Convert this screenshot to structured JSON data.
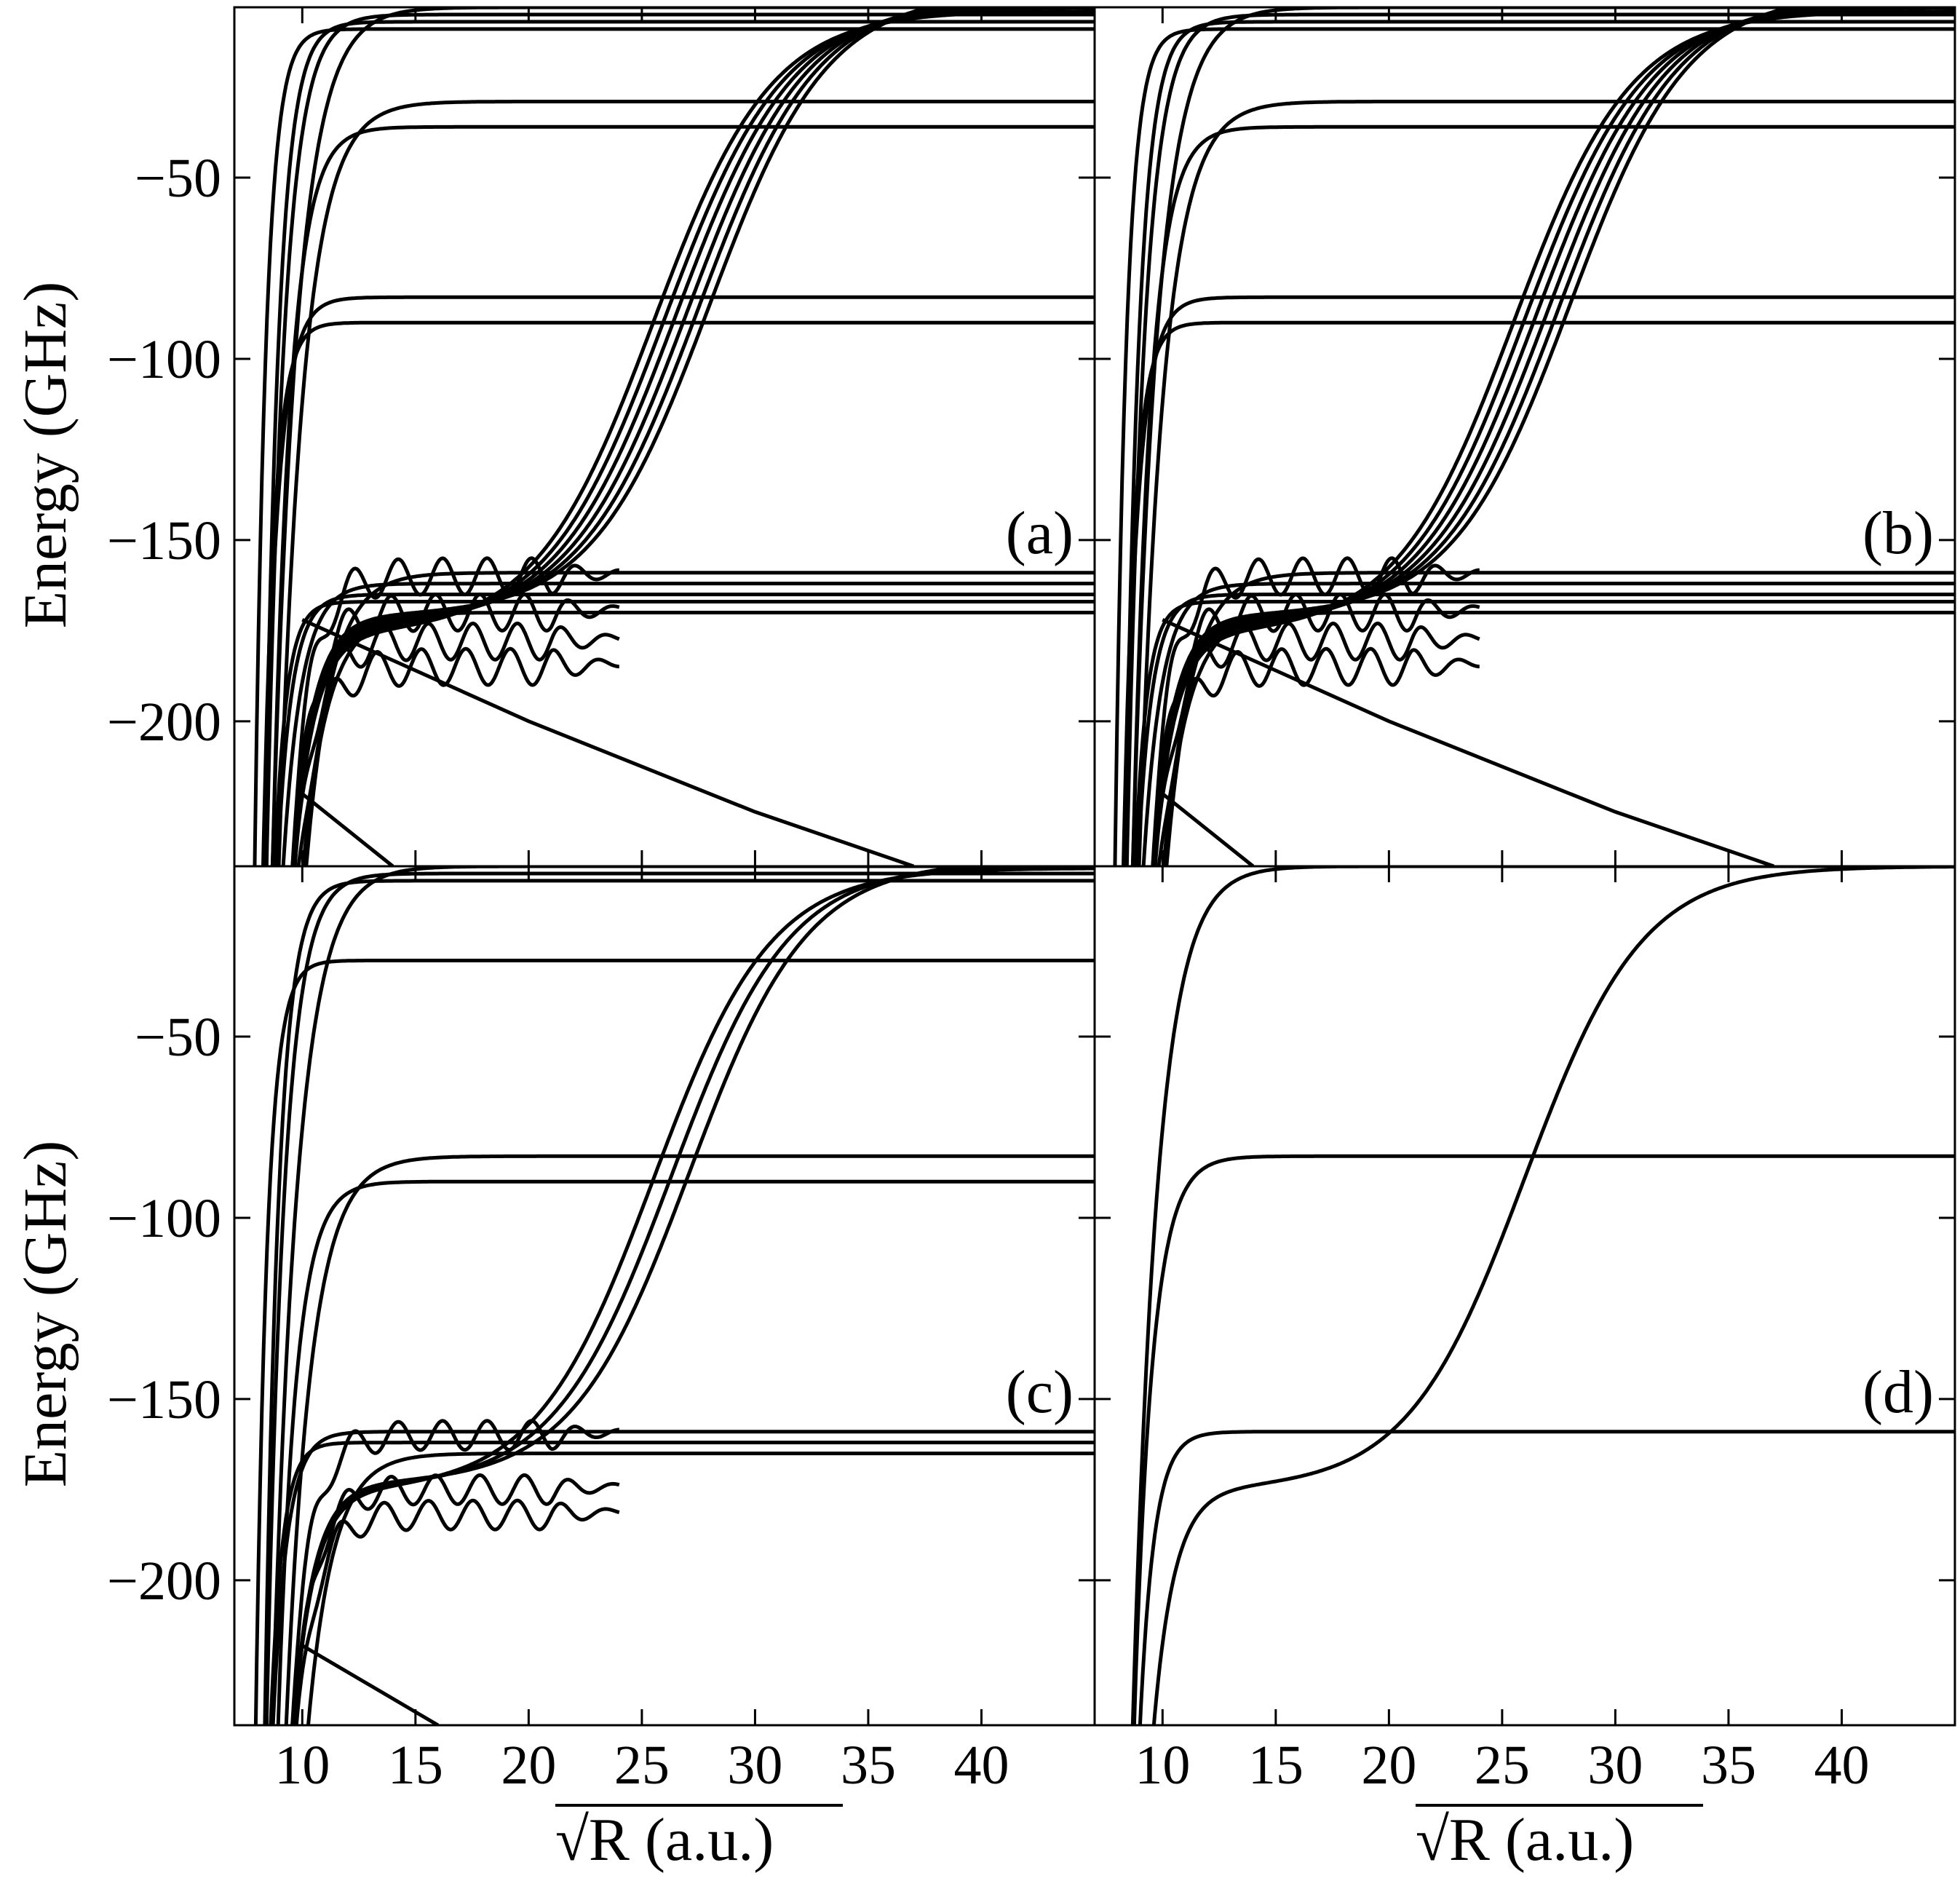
{
  "figure": {
    "y_axis_label": "Energy (GHz)",
    "x_axis_label": "R (a.u.)",
    "x_axis_label_prefix": "√",
    "x_ticks": [
      10,
      15,
      20,
      25,
      30,
      35,
      40
    ],
    "y_ticks": [
      -50,
      -100,
      -150,
      -200
    ]
  },
  "chart_data": [
    {
      "type": "line",
      "panel": "(a)",
      "xlabel": "",
      "ylabel": "Energy (GHz)",
      "xlim": [
        7,
        45
      ],
      "ylim": [
        -240,
        -3
      ],
      "grid": false,
      "asymptotes": [
        -3,
        -5,
        -7,
        -9,
        -29,
        -36,
        -83,
        -90,
        -159,
        -162,
        -165,
        -167,
        -170
      ],
      "diabatic_crossings": [
        {
          "center": 25.5,
          "offset": -1.0
        },
        {
          "center": 26.0,
          "offset": 0.0
        },
        {
          "center": 26.5,
          "offset": 1.0
        },
        {
          "center": 27.0,
          "offset": 2.0
        },
        {
          "center": 27.5,
          "offset": 3.0
        },
        {
          "center": 28.0,
          "offset": 4.0
        }
      ],
      "oscillating_curves": [
        {
          "level": -160,
          "amplitude": 5
        },
        {
          "level": -170,
          "amplitude": 5
        },
        {
          "level": -178,
          "amplitude": 5
        },
        {
          "level": -185,
          "amplitude": 5
        }
      ],
      "descending_curves": [
        {
          "x": [
            10,
            20,
            30,
            37
          ],
          "y": [
            -172,
            -200,
            -225,
            -240
          ]
        },
        {
          "x": [
            10,
            14
          ],
          "y": [
            -220,
            -240
          ]
        }
      ]
    },
    {
      "type": "line",
      "panel": "(b)",
      "xlabel": "",
      "ylabel": "",
      "xlim": [
        7,
        45
      ],
      "ylim": [
        -240,
        -3
      ],
      "grid": false,
      "asymptotes": [
        -3,
        -5,
        -7,
        -9,
        -29,
        -36,
        -83,
        -90,
        -159,
        -162,
        -165,
        -167,
        -170
      ],
      "diabatic_crossings": [
        {
          "center": 25.5,
          "offset": -1.0
        },
        {
          "center": 26.0,
          "offset": 0.0
        },
        {
          "center": 26.5,
          "offset": 1.0
        },
        {
          "center": 27.0,
          "offset": 2.0
        },
        {
          "center": 27.5,
          "offset": 3.0
        },
        {
          "center": 28.0,
          "offset": 4.0
        }
      ],
      "oscillating_curves": [
        {
          "level": -160,
          "amplitude": 5
        },
        {
          "level": -170,
          "amplitude": 5
        },
        {
          "level": -178,
          "amplitude": 5
        },
        {
          "level": -185,
          "amplitude": 5
        }
      ],
      "descending_curves": [
        {
          "x": [
            10,
            20,
            30,
            37
          ],
          "y": [
            -172,
            -200,
            -225,
            -240
          ]
        },
        {
          "x": [
            10,
            14
          ],
          "y": [
            -220,
            -240
          ]
        }
      ]
    },
    {
      "type": "line",
      "panel": "(c)",
      "xlabel": "√R (a.u.)",
      "ylabel": "Energy (GHz)",
      "xlim": [
        7,
        45
      ],
      "ylim": [
        -240,
        -3
      ],
      "grid": false,
      "asymptotes": [
        -3,
        -5,
        -7,
        -29,
        -83,
        -90,
        -159,
        -162,
        -165
      ],
      "diabatic_crossings": [
        {
          "center": 25.5,
          "offset": -0.5
        },
        {
          "center": 26.3,
          "offset": 0.5
        },
        {
          "center": 27.1,
          "offset": 1.5
        }
      ],
      "oscillating_curves": [
        {
          "level": -160,
          "amplitude": 4
        },
        {
          "level": -175,
          "amplitude": 4
        },
        {
          "level": -182,
          "amplitude": 4
        }
      ],
      "descending_curves": [
        {
          "x": [
            10,
            16
          ],
          "y": [
            -218,
            -240
          ]
        }
      ]
    },
    {
      "type": "line",
      "panel": "(d)",
      "xlabel": "√R (a.u.)",
      "ylabel": "",
      "xlim": [
        7,
        45
      ],
      "ylim": [
        -240,
        -3
      ],
      "grid": false,
      "asymptotes": [
        -3,
        -83,
        -159
      ],
      "diabatic_crossings": [
        {
          "center": 26.0,
          "offset": 0.0
        }
      ],
      "oscillating_curves": [],
      "descending_curves": []
    }
  ]
}
